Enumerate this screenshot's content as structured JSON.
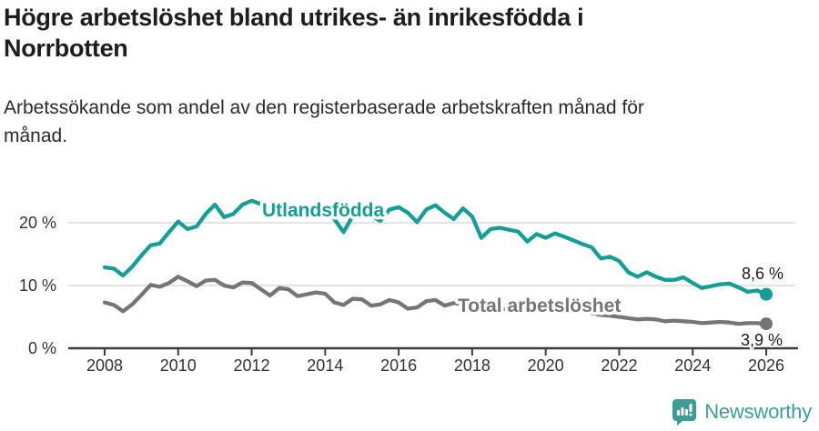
{
  "header": {
    "title": "Högre arbetslöshet bland utrikes- än inrikesfödda i Norrbotten",
    "subtitle": "Arbetssökande som andel av den registerbaserade arbetskraften månad för månad."
  },
  "colors": {
    "foreign_born_line": "#149e95",
    "total_line": "#757575",
    "grid": "#dadada",
    "axis": "#3d3d3d",
    "brand_teal": "#3d9e97"
  },
  "chart_data": {
    "type": "line",
    "unit": "percent",
    "grid": "horizontal gridlines at 10% and 20%, legend as inline line labels",
    "xlim": [
      2007.0,
      2026.9
    ],
    "ylim": [
      0,
      25
    ],
    "x_ticks": [
      2008,
      2010,
      2012,
      2014,
      2016,
      2018,
      2020,
      2022,
      2024,
      2026
    ],
    "y_ticks": [
      {
        "value": 0,
        "label": "0 %"
      },
      {
        "value": 10,
        "label": "10 %"
      },
      {
        "value": 20,
        "label": "20 %"
      }
    ],
    "series": [
      {
        "name": "Utlandsfödda",
        "color": "#149e95",
        "end_label": "8,6 %",
        "last_value": 8.6,
        "points": [
          [
            2008.0,
            12.9
          ],
          [
            2008.25,
            12.7
          ],
          [
            2008.5,
            11.6
          ],
          [
            2008.75,
            13.0
          ],
          [
            2009.0,
            14.8
          ],
          [
            2009.25,
            16.4
          ],
          [
            2009.5,
            16.7
          ],
          [
            2009.75,
            18.5
          ],
          [
            2010.0,
            20.2
          ],
          [
            2010.25,
            19.0
          ],
          [
            2010.5,
            19.4
          ],
          [
            2010.75,
            21.4
          ],
          [
            2011.0,
            22.9
          ],
          [
            2011.25,
            20.9
          ],
          [
            2011.5,
            21.4
          ],
          [
            2011.75,
            22.9
          ],
          [
            2012.0,
            23.5
          ],
          [
            2012.25,
            23.0
          ],
          [
            2012.5,
            21.2
          ],
          [
            2012.75,
            22.4
          ],
          [
            2013.0,
            22.6
          ],
          [
            2013.25,
            21.9
          ],
          [
            2013.5,
            21.0
          ],
          [
            2013.75,
            21.9
          ],
          [
            2014.0,
            22.1
          ],
          [
            2014.25,
            20.6
          ],
          [
            2014.5,
            18.5
          ],
          [
            2014.75,
            21.1
          ],
          [
            2015.0,
            21.9
          ],
          [
            2015.25,
            21.1
          ],
          [
            2015.5,
            20.3
          ],
          [
            2015.75,
            22.1
          ],
          [
            2016.0,
            22.5
          ],
          [
            2016.25,
            21.6
          ],
          [
            2016.5,
            20.1
          ],
          [
            2016.75,
            22.1
          ],
          [
            2017.0,
            22.8
          ],
          [
            2017.25,
            21.6
          ],
          [
            2017.5,
            20.6
          ],
          [
            2017.75,
            22.3
          ],
          [
            2018.0,
            21.0
          ],
          [
            2018.25,
            17.6
          ],
          [
            2018.5,
            19.0
          ],
          [
            2018.75,
            19.2
          ],
          [
            2019.0,
            18.9
          ],
          [
            2019.25,
            18.6
          ],
          [
            2019.5,
            17.0
          ],
          [
            2019.75,
            18.2
          ],
          [
            2020.0,
            17.6
          ],
          [
            2020.25,
            18.3
          ],
          [
            2020.5,
            17.8
          ],
          [
            2020.75,
            17.2
          ],
          [
            2021.0,
            16.6
          ],
          [
            2021.25,
            16.1
          ],
          [
            2021.5,
            14.3
          ],
          [
            2021.75,
            14.6
          ],
          [
            2022.0,
            13.9
          ],
          [
            2022.25,
            12.1
          ],
          [
            2022.5,
            11.4
          ],
          [
            2022.75,
            12.1
          ],
          [
            2023.0,
            11.4
          ],
          [
            2023.25,
            10.9
          ],
          [
            2023.5,
            10.9
          ],
          [
            2023.75,
            11.3
          ],
          [
            2024.0,
            10.4
          ],
          [
            2024.25,
            9.6
          ],
          [
            2024.5,
            9.9
          ],
          [
            2024.75,
            10.2
          ],
          [
            2025.0,
            10.3
          ],
          [
            2025.25,
            9.7
          ],
          [
            2025.5,
            9.0
          ],
          [
            2025.75,
            9.2
          ],
          [
            2026.0,
            8.6
          ]
        ]
      },
      {
        "name": "Total arbetslöshet",
        "color": "#757575",
        "end_label": "3,9 %",
        "last_value": 3.9,
        "points": [
          [
            2008.0,
            7.3
          ],
          [
            2008.25,
            6.9
          ],
          [
            2008.5,
            5.9
          ],
          [
            2008.75,
            7.0
          ],
          [
            2009.0,
            8.5
          ],
          [
            2009.25,
            10.1
          ],
          [
            2009.5,
            9.8
          ],
          [
            2009.75,
            10.4
          ],
          [
            2010.0,
            11.4
          ],
          [
            2010.25,
            10.7
          ],
          [
            2010.5,
            9.9
          ],
          [
            2010.75,
            10.8
          ],
          [
            2011.0,
            10.9
          ],
          [
            2011.25,
            10.0
          ],
          [
            2011.5,
            9.7
          ],
          [
            2011.75,
            10.5
          ],
          [
            2012.0,
            10.4
          ],
          [
            2012.25,
            9.4
          ],
          [
            2012.5,
            8.4
          ],
          [
            2012.75,
            9.6
          ],
          [
            2013.0,
            9.4
          ],
          [
            2013.25,
            8.3
          ],
          [
            2013.5,
            8.6
          ],
          [
            2013.75,
            8.9
          ],
          [
            2014.0,
            8.7
          ],
          [
            2014.25,
            7.3
          ],
          [
            2014.5,
            6.9
          ],
          [
            2014.75,
            7.9
          ],
          [
            2015.0,
            7.8
          ],
          [
            2015.25,
            6.8
          ],
          [
            2015.5,
            7.0
          ],
          [
            2015.75,
            7.7
          ],
          [
            2016.0,
            7.3
          ],
          [
            2016.25,
            6.3
          ],
          [
            2016.5,
            6.5
          ],
          [
            2016.75,
            7.5
          ],
          [
            2017.0,
            7.7
          ],
          [
            2017.25,
            6.8
          ],
          [
            2017.5,
            7.2
          ],
          [
            2017.75,
            7.0
          ],
          [
            2018.0,
            6.8
          ],
          [
            2018.25,
            6.1
          ],
          [
            2018.5,
            5.9
          ],
          [
            2018.75,
            6.3
          ],
          [
            2019.0,
            6.2
          ],
          [
            2019.25,
            5.7
          ],
          [
            2019.5,
            5.8
          ],
          [
            2019.75,
            6.1
          ],
          [
            2020.0,
            6.0
          ],
          [
            2020.25,
            6.6
          ],
          [
            2020.5,
            6.7
          ],
          [
            2020.75,
            6.4
          ],
          [
            2021.0,
            6.1
          ],
          [
            2021.25,
            5.6
          ],
          [
            2021.5,
            5.3
          ],
          [
            2021.75,
            5.2
          ],
          [
            2022.0,
            5.0
          ],
          [
            2022.25,
            4.8
          ],
          [
            2022.5,
            4.6
          ],
          [
            2022.75,
            4.7
          ],
          [
            2023.0,
            4.6
          ],
          [
            2023.25,
            4.3
          ],
          [
            2023.5,
            4.4
          ],
          [
            2023.75,
            4.3
          ],
          [
            2024.0,
            4.2
          ],
          [
            2024.25,
            4.0
          ],
          [
            2024.5,
            4.1
          ],
          [
            2024.75,
            4.2
          ],
          [
            2025.0,
            4.1
          ],
          [
            2025.25,
            3.9
          ],
          [
            2025.5,
            4.0
          ],
          [
            2025.75,
            4.0
          ],
          [
            2026.0,
            3.9
          ]
        ]
      }
    ]
  },
  "footer": {
    "brand": "Newsworthy",
    "logo_icon": "bar-chart-speech-bubble-icon"
  }
}
